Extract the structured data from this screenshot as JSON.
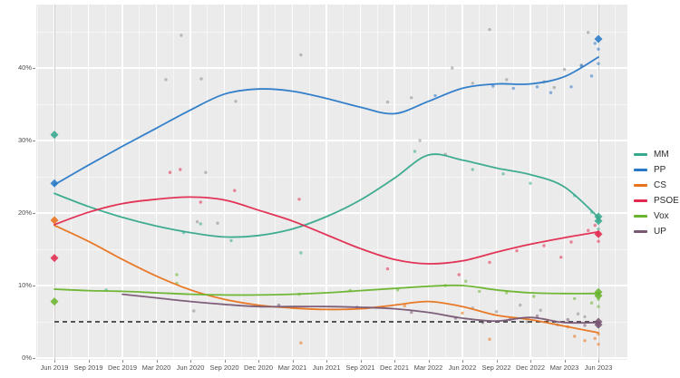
{
  "chart_data": {
    "type": "line",
    "title": "",
    "xlabel": "",
    "ylabel": "",
    "x_tick_labels": [
      "Jun 2019",
      "Sep 2019",
      "Dec 2019",
      "Mar 2020",
      "Jun 2020",
      "Sep 2020",
      "Dec 2020",
      "Mar 2021",
      "Jun 2021",
      "Sep 2021",
      "Dec 2021",
      "Mar 2022",
      "Jun 2022",
      "Sep 2022",
      "Dec 2022",
      "Mar 2023",
      "Jun 2023"
    ],
    "y_tick_labels": [
      "0%",
      "10%",
      "20%",
      "30%",
      "40%"
    ],
    "y_major_values": [
      0,
      10,
      20,
      30,
      40
    ],
    "y_minor_values": [
      5,
      15,
      25,
      35,
      45
    ],
    "ylim": [
      0,
      48.75
    ],
    "grid": "on",
    "legend_position": "right",
    "party_colors": {
      "MM": "#36a98c",
      "PP": "#2979c8",
      "CS": "#e8731c",
      "PSOE": "#e12a4e",
      "Vox": "#6ab42d",
      "UP": "#795874",
      "Other": "#8a8a8a"
    },
    "threshold_line": {
      "value": 5,
      "style": "dashed",
      "color": "#404040"
    },
    "election_marker_x": [
      0,
      16
    ],
    "series": [
      {
        "name": "MM",
        "values": [
          22.7,
          20.9,
          19.4,
          18.2,
          17.3,
          16.7,
          16.9,
          17.8,
          19.5,
          21.8,
          24.8,
          28.0,
          27.3,
          26.2,
          25.3,
          23.6,
          19.4
        ]
      },
      {
        "name": "PP",
        "values": [
          23.9,
          26.6,
          29.2,
          31.7,
          34.2,
          36.4,
          37.1,
          36.8,
          35.8,
          34.6,
          33.7,
          35.4,
          37.2,
          37.8,
          37.8,
          38.8,
          41.5
        ]
      },
      {
        "name": "CS",
        "values": [
          18.3,
          16.1,
          13.6,
          11.3,
          9.4,
          8.1,
          7.3,
          6.9,
          6.7,
          6.8,
          7.3,
          7.8,
          7.1,
          5.9,
          5.3,
          4.4,
          3.5
        ]
      },
      {
        "name": "PSOE",
        "values": [
          18.4,
          20.1,
          21.3,
          21.9,
          22.2,
          21.8,
          20.4,
          18.9,
          17.0,
          15.1,
          13.6,
          13.0,
          13.4,
          14.6,
          15.7,
          16.6,
          17.4
        ]
      },
      {
        "name": "Vox",
        "values": [
          9.5,
          9.3,
          9.2,
          9.0,
          8.8,
          8.7,
          8.7,
          8.8,
          9.0,
          9.3,
          9.6,
          9.9,
          10.0,
          9.4,
          9.0,
          8.9,
          8.9
        ]
      },
      {
        "name": "UP",
        "values": [
          null,
          null,
          8.8,
          8.3,
          7.8,
          7.4,
          7.1,
          7.1,
          7.1,
          7.0,
          6.8,
          6.3,
          5.5,
          5.1,
          5.6,
          4.9,
          4.9
        ]
      }
    ],
    "election_results": [
      {
        "x": 0,
        "party": "MM",
        "value": 30.8
      },
      {
        "x": 0,
        "party": "PP",
        "value": 24.1
      },
      {
        "x": 0,
        "party": "CS",
        "value": 19.0
      },
      {
        "x": 0,
        "party": "PSOE",
        "value": 13.8
      },
      {
        "x": 0,
        "party": "Vox",
        "value": 7.8
      },
      {
        "x": 16,
        "party": "PP",
        "value": 44.0
      },
      {
        "x": 16,
        "party": "MM",
        "value": 19.5
      },
      {
        "x": 16,
        "party": "MM",
        "value": 18.9
      },
      {
        "x": 16,
        "party": "PSOE",
        "value": 17.1
      },
      {
        "x": 16,
        "party": "Vox",
        "value": 9.1
      },
      {
        "x": 16,
        "party": "Vox",
        "value": 8.6
      },
      {
        "x": 16,
        "party": "UP",
        "value": 5.0
      },
      {
        "x": 16,
        "party": "UP",
        "value": 4.6
      }
    ],
    "scatter": [
      [
        "Other",
        3.73,
        44.5
      ],
      [
        "Other",
        7.25,
        41.8
      ],
      [
        "Other",
        4.32,
        38.5
      ],
      [
        "Other",
        3.28,
        38.4
      ],
      [
        "Other",
        5.33,
        35.4
      ],
      [
        "Other",
        9.8,
        35.3
      ],
      [
        "Other",
        12.8,
        45.3
      ],
      [
        "Other",
        15.7,
        44.9
      ],
      [
        "Other",
        15.0,
        39.8
      ],
      [
        "Other",
        11.7,
        40.0
      ],
      [
        "Other",
        10.5,
        35.9
      ],
      [
        "Other",
        12.3,
        37.9
      ],
      [
        "Other",
        13.3,
        38.4
      ],
      [
        "Other",
        14.4,
        38.1
      ],
      [
        "Other",
        14.7,
        37.3
      ],
      [
        "Other",
        15.5,
        40.4
      ],
      [
        "Other",
        4.45,
        25.6
      ],
      [
        "Other",
        4.2,
        18.8
      ],
      [
        "Other",
        4.8,
        18.6
      ],
      [
        "Other",
        10.75,
        30.0
      ],
      [
        "Other",
        11.5,
        28.1
      ],
      [
        "Other",
        12.3,
        6.9
      ],
      [
        "Other",
        13.0,
        6.4
      ],
      [
        "Other",
        13.7,
        7.3
      ],
      [
        "Other",
        14.3,
        6.6
      ],
      [
        "Other",
        15.4,
        6.1
      ],
      [
        "Other",
        4.1,
        6.5
      ],
      [
        "Other",
        13.9,
        5.0
      ],
      [
        "Other",
        14.8,
        4.6
      ],
      [
        "Other",
        15.6,
        5.7
      ],
      [
        "PP",
        12.9,
        37.5
      ],
      [
        "PP",
        13.5,
        37.2
      ],
      [
        "PP",
        14.2,
        37.4
      ],
      [
        "PP",
        14.6,
        36.6
      ],
      [
        "PP",
        15.2,
        37.4
      ],
      [
        "PP",
        15.5,
        40.3
      ],
      [
        "PP",
        15.9,
        43.4
      ],
      [
        "PP",
        16,
        42.6
      ],
      [
        "PP",
        16,
        40.6
      ],
      [
        "PP",
        15.8,
        38.9
      ],
      [
        "PP",
        11.2,
        36.2
      ],
      [
        "MM",
        3.8,
        17.3
      ],
      [
        "MM",
        4.3,
        18.5
      ],
      [
        "MM",
        7.25,
        14.5
      ],
      [
        "MM",
        5.2,
        16.2
      ],
      [
        "MM",
        10.6,
        28.5
      ],
      [
        "MM",
        12.3,
        26.0
      ],
      [
        "MM",
        13.2,
        25.4
      ],
      [
        "MM",
        14.0,
        24.1
      ],
      [
        "MM",
        15.3,
        22.4
      ],
      [
        "MM",
        15.8,
        20.1
      ],
      [
        "MM",
        16,
        19.0
      ],
      [
        "MM",
        16,
        17.8
      ],
      [
        "MM",
        1.52,
        9.4
      ],
      [
        "PSOE",
        3.4,
        25.6
      ],
      [
        "PSOE",
        3.7,
        26.0
      ],
      [
        "PSOE",
        4.3,
        21.5
      ],
      [
        "PSOE",
        5.3,
        23.1
      ],
      [
        "PSOE",
        7.2,
        21.9
      ],
      [
        "PSOE",
        9.8,
        12.3
      ],
      [
        "PSOE",
        11.9,
        11.5
      ],
      [
        "PSOE",
        12.8,
        13.2
      ],
      [
        "PSOE",
        13.6,
        14.8
      ],
      [
        "PSOE",
        14.4,
        15.5
      ],
      [
        "PSOE",
        15.2,
        16.0
      ],
      [
        "PSOE",
        15.7,
        17.6
      ],
      [
        "PSOE",
        16,
        17.0
      ],
      [
        "PSOE",
        16,
        16.1
      ],
      [
        "PSOE",
        15.9,
        18.3
      ],
      [
        "PSOE",
        14.9,
        13.9
      ],
      [
        "Vox",
        3.6,
        11.5
      ],
      [
        "Vox",
        3.6,
        10.3
      ],
      [
        "Vox",
        10.1,
        9.4
      ],
      [
        "Vox",
        11.5,
        10.0
      ],
      [
        "Vox",
        12.5,
        9.2
      ],
      [
        "Vox",
        13.3,
        9.0
      ],
      [
        "Vox",
        14.1,
        8.5
      ],
      [
        "Vox",
        15.3,
        8.2
      ],
      [
        "Vox",
        15.8,
        7.6
      ],
      [
        "Vox",
        16,
        8.1
      ],
      [
        "Vox",
        16,
        7.1
      ],
      [
        "Vox",
        7.2,
        8.8
      ],
      [
        "Vox",
        8.7,
        9.3
      ],
      [
        "Vox",
        12.1,
        10.6
      ],
      [
        "UP",
        10.5,
        6.3
      ],
      [
        "UP",
        11.8,
        5.5
      ],
      [
        "UP",
        12.6,
        4.9
      ],
      [
        "UP",
        13.4,
        5.3
      ],
      [
        "UP",
        14.2,
        5.8
      ],
      [
        "UP",
        15.1,
        5.3
      ],
      [
        "UP",
        15.6,
        4.5
      ],
      [
        "UP",
        16,
        4.4
      ],
      [
        "UP",
        8.9,
        7.0
      ],
      [
        "UP",
        6.6,
        7.3
      ],
      [
        "CS",
        7.25,
        2.1
      ],
      [
        "CS",
        12.8,
        2.6
      ],
      [
        "CS",
        15.3,
        3.0
      ],
      [
        "CS",
        15.6,
        2.4
      ],
      [
        "CS",
        15.9,
        2.7
      ],
      [
        "CS",
        16,
        3.3
      ],
      [
        "CS",
        15.1,
        4.3
      ],
      [
        "CS",
        14.5,
        5.2
      ],
      [
        "CS",
        12.0,
        6.2
      ],
      [
        "CS",
        10.3,
        7.2
      ],
      [
        "CS",
        16,
        1.9
      ]
    ],
    "legend": {
      "items": [
        {
          "label": "MM"
        },
        {
          "label": "PP"
        },
        {
          "label": "CS"
        },
        {
          "label": "PSOE"
        },
        {
          "label": "Vox"
        },
        {
          "label": "UP"
        }
      ]
    }
  },
  "colors": {
    "panel_bg": "#ebebeb",
    "figure_bg": "#ffffff",
    "grid_major": "rgba(255,255,255,1)",
    "grid_minor": "rgba(255,255,255,0.55)",
    "axis_text": "#4d4d4d",
    "tick_mark": "#8c8c8c"
  }
}
